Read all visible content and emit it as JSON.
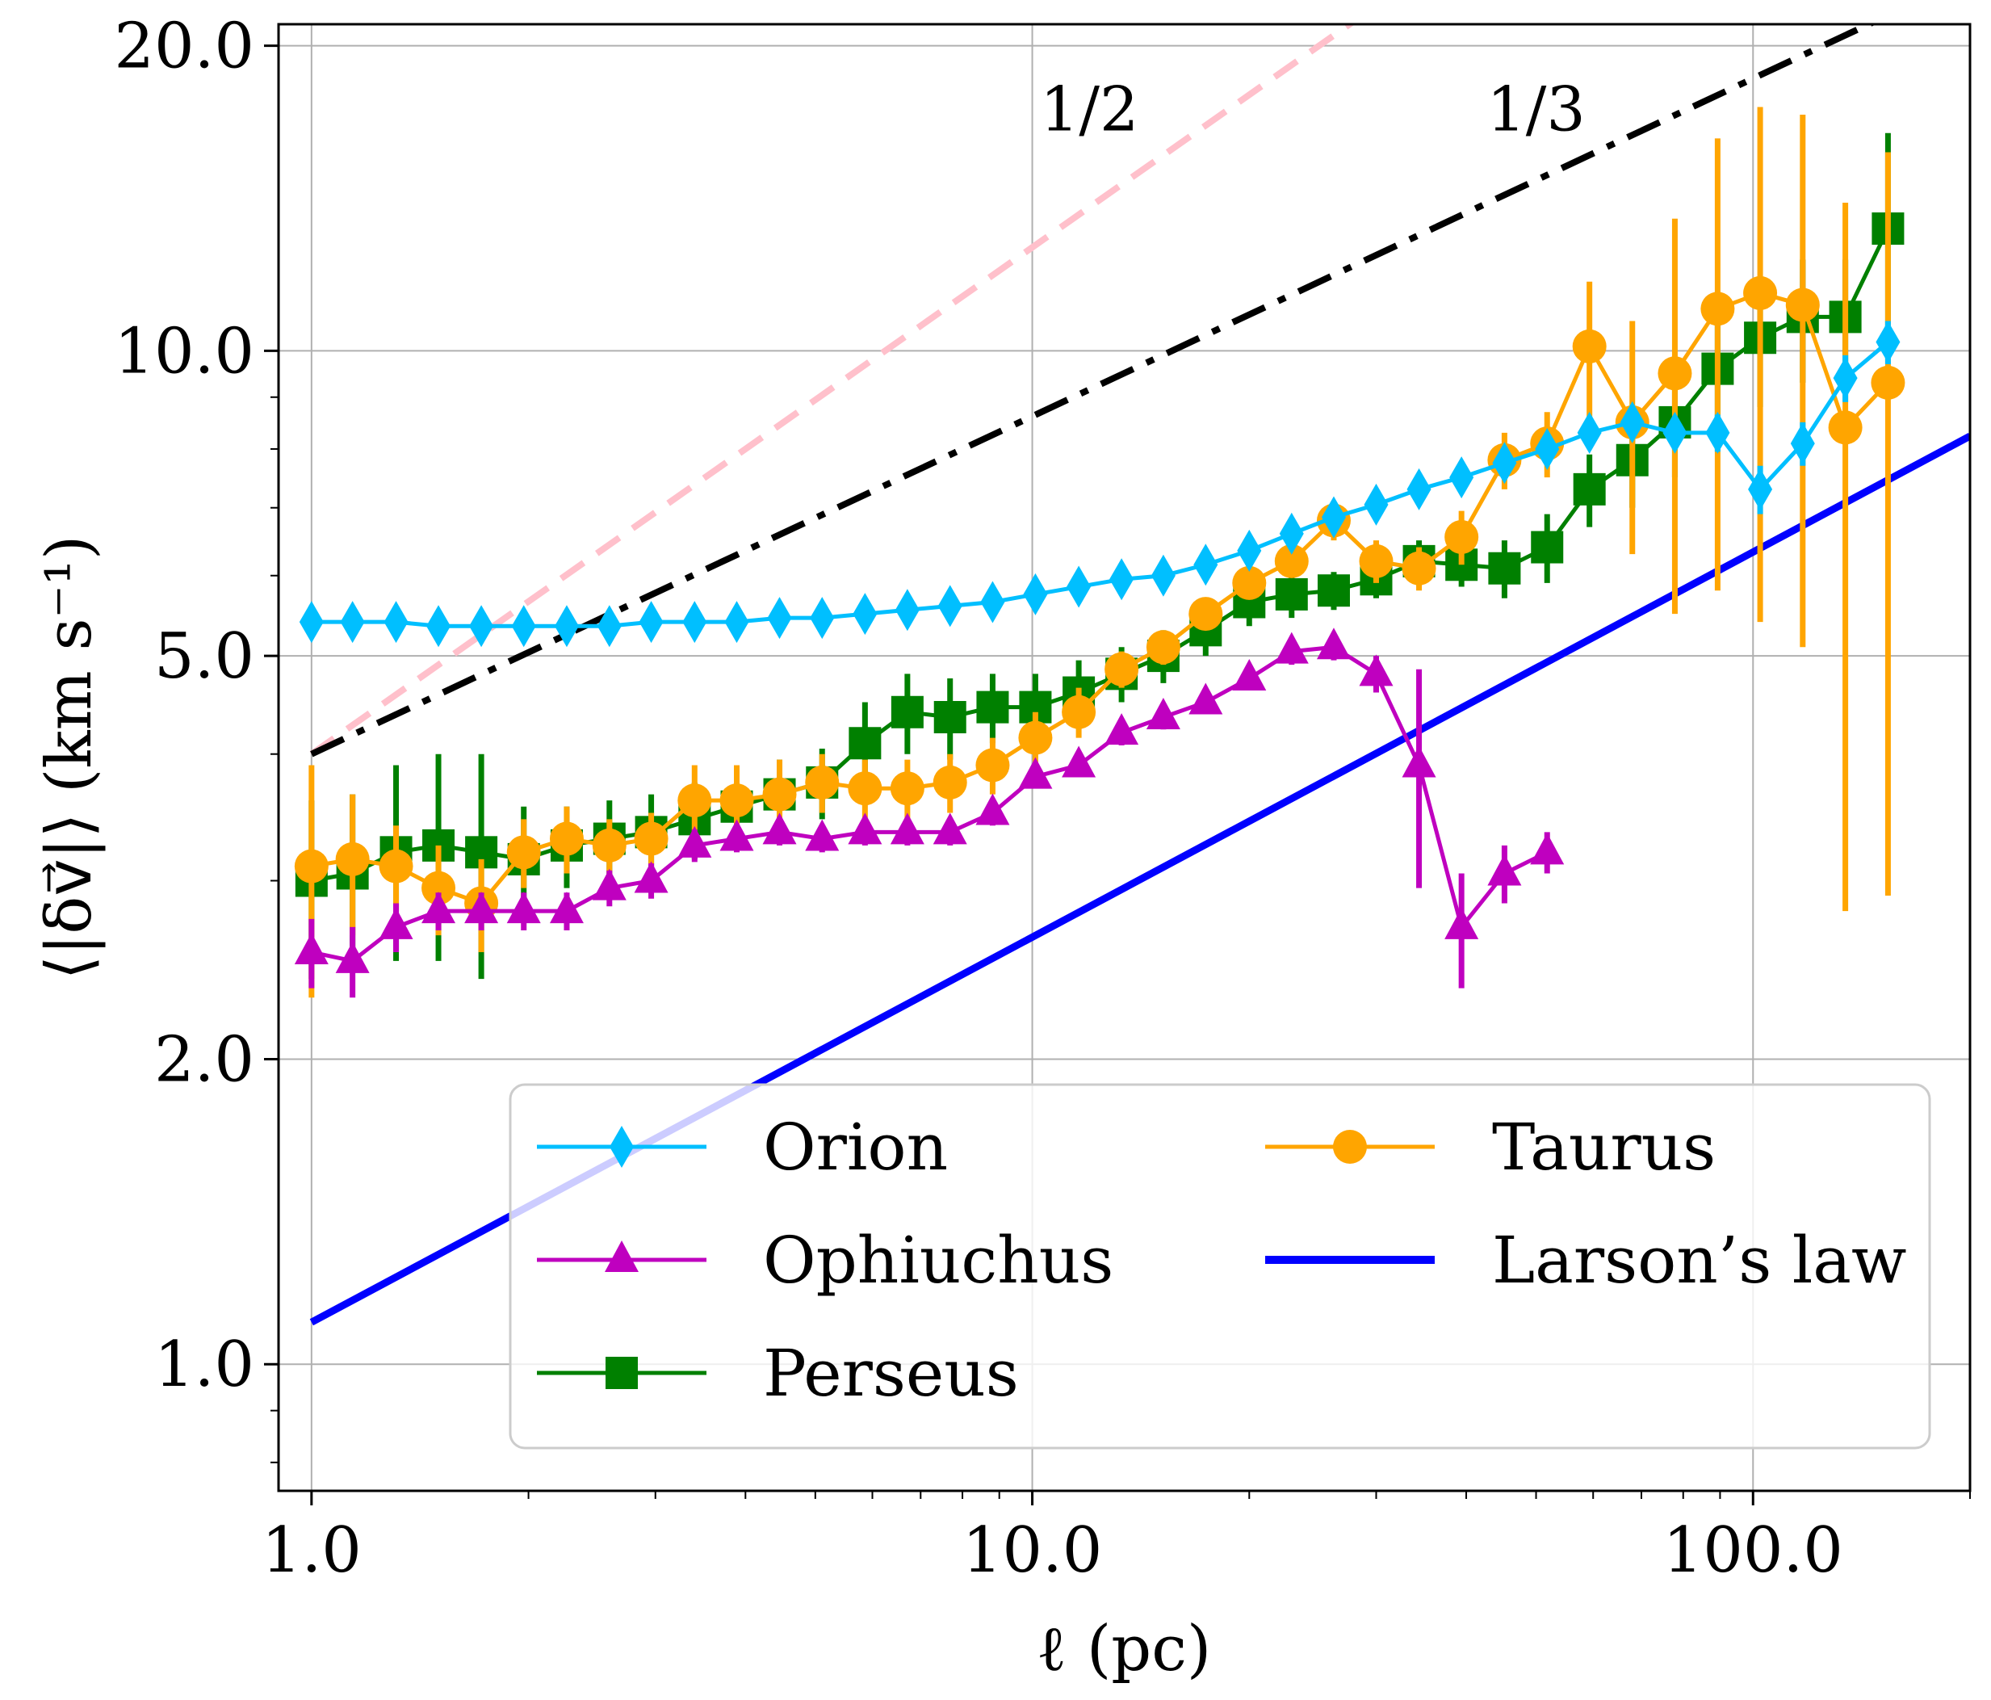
{
  "chart_data": {
    "type": "line",
    "xscale": "log",
    "yscale": "log",
    "xlim": [
      0.9,
      200
    ],
    "ylim": [
      0.75,
      21.0
    ],
    "xlabel": "ℓ (pc)",
    "ylabel": "⟨|δv⃗|⟩ (km s⁻¹)",
    "xticks": [
      {
        "v": 1,
        "label": "1.0"
      },
      {
        "v": 10,
        "label": "10.0"
      },
      {
        "v": 100,
        "label": "100.0"
      }
    ],
    "yticks": [
      {
        "v": 1,
        "label": "1.0"
      },
      {
        "v": 2,
        "label": "2.0"
      },
      {
        "v": 5,
        "label": "5.0"
      },
      {
        "v": 10,
        "label": "10.0"
      },
      {
        "v": 20,
        "label": "20.0"
      }
    ],
    "grid": true,
    "legend_position": "lower-center",
    "series": [
      {
        "name": "Orion",
        "color": "#00bfff",
        "marker": "diamond",
        "x": [
          1.0,
          1.14,
          1.31,
          1.5,
          1.72,
          1.97,
          2.26,
          2.59,
          2.96,
          3.4,
          3.89,
          4.46,
          5.11,
          5.86,
          6.71,
          7.69,
          8.81,
          10.1,
          11.6,
          13.3,
          15.2,
          17.4,
          20.0,
          22.9,
          26.2,
          30.0,
          34.4,
          39.4,
          45.2,
          51.8,
          59.3,
          68.0,
          77.9,
          89.3,
          102.3,
          117.2,
          134.3,
          153.9
        ],
        "y": [
          5.4,
          5.4,
          5.4,
          5.35,
          5.35,
          5.35,
          5.35,
          5.35,
          5.4,
          5.4,
          5.4,
          5.45,
          5.45,
          5.5,
          5.55,
          5.6,
          5.65,
          5.75,
          5.85,
          5.95,
          6.0,
          6.15,
          6.35,
          6.6,
          6.85,
          7.05,
          7.3,
          7.5,
          7.75,
          8.0,
          8.3,
          8.5,
          8.3,
          8.3,
          7.3,
          8.1,
          9.4,
          10.2
        ],
        "yerr": [
          0.08,
          0.08,
          0.08,
          0.08,
          0.08,
          0.08,
          0.08,
          0.08,
          0.08,
          0.08,
          0.08,
          0.08,
          0.08,
          0.08,
          0.08,
          0.08,
          0.08,
          0.08,
          0.08,
          0.08,
          0.08,
          0.08,
          0.1,
          0.1,
          0.1,
          0.1,
          0.12,
          0.12,
          0.15,
          0.2,
          0.25,
          0.3,
          0.3,
          0.35,
          0.4,
          0.4,
          0.5,
          0.5
        ]
      },
      {
        "name": "Ophiuchus",
        "color": "#bf00bf",
        "marker": "triangle",
        "x": [
          1.0,
          1.14,
          1.31,
          1.5,
          1.72,
          1.97,
          2.26,
          2.59,
          2.96,
          3.4,
          3.89,
          4.46,
          5.11,
          5.86,
          6.71,
          7.69,
          8.81,
          10.1,
          11.6,
          13.3,
          15.2,
          17.4,
          20.0,
          22.9,
          26.2,
          30.0,
          34.4,
          39.4,
          45.2,
          51.8
        ],
        "y": [
          2.55,
          2.5,
          2.7,
          2.8,
          2.8,
          2.8,
          2.8,
          2.95,
          3.0,
          3.25,
          3.3,
          3.35,
          3.3,
          3.35,
          3.35,
          3.35,
          3.5,
          3.8,
          3.9,
          4.2,
          4.35,
          4.5,
          4.75,
          5.05,
          5.1,
          4.8,
          3.9,
          2.7,
          3.05,
          3.2
        ],
        "yerr": [
          0.2,
          0.2,
          0.15,
          0.12,
          0.12,
          0.12,
          0.12,
          0.12,
          0.12,
          0.12,
          0.1,
          0.1,
          0.1,
          0.1,
          0.1,
          0.1,
          0.1,
          0.1,
          0.1,
          0.12,
          0.12,
          0.12,
          0.12,
          0.15,
          0.15,
          0.2,
          0.95,
          0.35,
          0.2,
          0.15
        ]
      },
      {
        "name": "Perseus",
        "color": "#008000",
        "marker": "square",
        "x": [
          1.0,
          1.14,
          1.31,
          1.5,
          1.72,
          1.97,
          2.26,
          2.59,
          2.96,
          3.4,
          3.89,
          4.46,
          5.11,
          5.86,
          6.71,
          7.69,
          8.81,
          10.1,
          11.6,
          13.3,
          15.2,
          17.4,
          20.0,
          22.9,
          26.2,
          30.0,
          34.4,
          39.4,
          45.2,
          51.8,
          59.3,
          68.0,
          77.9,
          89.3,
          102.3,
          117.2,
          134.3,
          153.9
        ],
        "y": [
          3.0,
          3.05,
          3.2,
          3.25,
          3.2,
          3.15,
          3.25,
          3.3,
          3.35,
          3.45,
          3.55,
          3.65,
          3.75,
          4.1,
          4.4,
          4.35,
          4.45,
          4.45,
          4.6,
          4.8,
          5.0,
          5.3,
          5.65,
          5.75,
          5.8,
          5.95,
          6.2,
          6.15,
          6.1,
          6.4,
          7.3,
          7.8,
          8.5,
          9.6,
          10.3,
          10.8,
          10.8,
          13.2
        ],
        "yerr": [
          0.6,
          0.6,
          0.7,
          0.75,
          0.8,
          0.4,
          0.3,
          0.3,
          0.3,
          0.3,
          0.3,
          0.3,
          0.3,
          0.4,
          0.4,
          0.4,
          0.35,
          0.35,
          0.35,
          0.3,
          0.3,
          0.3,
          0.3,
          0.3,
          0.25,
          0.25,
          0.3,
          0.3,
          0.4,
          0.5,
          0.6,
          0.8,
          1.0,
          1.5,
          1.5,
          1.5,
          1.5,
          3.2
        ]
      },
      {
        "name": "Taurus",
        "color": "#ffa500",
        "marker": "circle",
        "x": [
          1.0,
          1.14,
          1.31,
          1.5,
          1.72,
          1.97,
          2.26,
          2.59,
          2.96,
          3.4,
          3.89,
          4.46,
          5.11,
          5.86,
          6.71,
          7.69,
          8.81,
          10.1,
          11.6,
          13.3,
          15.2,
          17.4,
          20.0,
          22.9,
          26.2,
          30.0,
          34.4,
          39.4,
          45.2,
          51.8,
          59.3,
          68.0,
          77.9,
          89.3,
          102.3,
          117.2,
          134.3,
          153.9
        ],
        "y": [
          3.1,
          3.15,
          3.1,
          2.95,
          2.85,
          3.2,
          3.3,
          3.25,
          3.3,
          3.6,
          3.6,
          3.65,
          3.75,
          3.7,
          3.7,
          3.75,
          3.9,
          4.15,
          4.4,
          4.85,
          5.1,
          5.5,
          5.9,
          6.2,
          6.8,
          6.2,
          6.1,
          6.55,
          7.8,
          8.1,
          10.1,
          8.5,
          9.5,
          11.0,
          11.4,
          11.1,
          8.4,
          9.3
        ],
        "yerr": [
          0.8,
          0.5,
          0.3,
          0.3,
          0.3,
          0.25,
          0.25,
          0.2,
          0.2,
          0.3,
          0.3,
          0.3,
          0.25,
          0.25,
          0.25,
          0.25,
          0.25,
          0.25,
          0.25,
          0.2,
          0.2,
          0.2,
          0.2,
          0.2,
          0.3,
          0.3,
          0.3,
          0.4,
          0.5,
          0.6,
          1.6,
          2.2,
          4.0,
          5.2,
          6.0,
          6.0,
          5.6,
          6.4
        ]
      }
    ],
    "reference_lines": [
      {
        "name": "Larson's law",
        "color": "#0000ff",
        "style": "solid",
        "amplitude": 1.1,
        "exponent": 0.38
      },
      {
        "name": "slope 1/3",
        "color": "#000000",
        "style": "dashdot",
        "amplitude": 4.0,
        "exponent": 0.3333
      },
      {
        "name": "slope 1/2",
        "color": "#ffc0cb",
        "style": "dashed",
        "amplitude": 4.0,
        "exponent": 0.5
      }
    ],
    "annotations": [
      {
        "text": "1/2",
        "x": 12.0,
        "y": 16.5
      },
      {
        "text": "1/3",
        "x": 50.0,
        "y": 16.5
      }
    ],
    "legend": [
      "Orion",
      "Ophiuchus",
      "Perseus",
      "Taurus",
      "Larson’s law"
    ]
  }
}
